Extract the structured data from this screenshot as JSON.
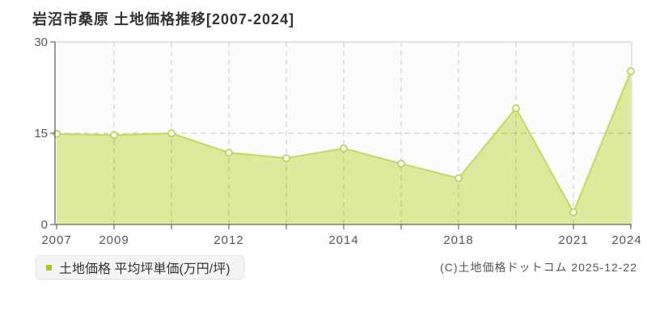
{
  "title": "岩沼市桑原 土地価格推移[2007-2024]",
  "legend": {
    "label": "土地価格 平均坪単価(万円/坪)",
    "marker_color": "#a5cc26"
  },
  "copyright": "(C)土地価格ドットコム 2025-12-22",
  "chart_data": {
    "type": "area",
    "title": "岩沼市桑原 土地価格推移[2007-2024]",
    "x_labels": [
      "2007",
      "2009",
      "",
      "2012",
      "",
      "2014",
      "",
      "2018",
      "",
      "2021",
      "2024"
    ],
    "values": [
      14.9,
      14.7,
      15.0,
      11.8,
      10.9,
      12.5,
      10.0,
      7.6,
      19.1,
      2.0,
      25.2
    ],
    "series_name": "土地価格 平均坪単価(万円/坪)",
    "ylim": [
      0,
      30
    ],
    "yticks": [
      0,
      15,
      30
    ],
    "grid": true,
    "legend_position": "bottom-left",
    "colors": {
      "fill": "#dcea9e",
      "line": "#c3db68",
      "marker_stroke": "#b9d45c",
      "marker_fill": "#ffffff",
      "grid": "#cccccc",
      "axis": "#666666",
      "border": "#dddddd",
      "tick_text": "#555555",
      "plot_bg": "#fcfcfc"
    }
  }
}
